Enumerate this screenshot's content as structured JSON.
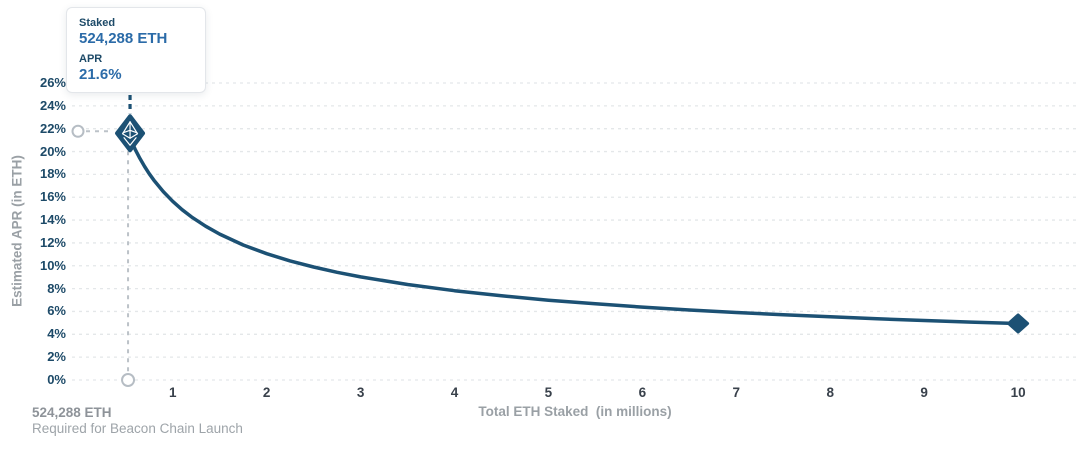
{
  "tooltip": {
    "staked_label": "Staked",
    "staked_value": "524,288 ETH",
    "apr_label": "APR",
    "apr_value": "21.6%"
  },
  "annotation": {
    "line1": "524,288 ETH",
    "line2": "Required for Beacon Chain Launch"
  },
  "chart_data": {
    "type": "line",
    "title": "",
    "xlabel": "Total ETH Staked  (in millions)",
    "ylabel": "Estimated APR (in ETH)",
    "xlim": [
      0,
      10.65
    ],
    "ylim": [
      0,
      26
    ],
    "xticks": [
      1,
      2,
      3,
      4,
      5,
      6,
      7,
      8,
      9,
      10
    ],
    "yticks": [
      0,
      2,
      4,
      6,
      8,
      10,
      12,
      14,
      16,
      18,
      20,
      22,
      24,
      26
    ],
    "ytick_suffix": "%",
    "grid": "horizontal-dashed",
    "legend": "none",
    "series": [
      {
        "name": "Estimated APR",
        "x": [
          0.524288,
          0.55,
          0.6,
          0.65,
          0.7,
          0.75,
          0.8,
          0.9,
          1,
          1.1,
          1.2,
          1.35,
          1.5,
          1.75,
          2,
          2.25,
          2.5,
          2.75,
          3,
          3.5,
          4,
          4.5,
          5,
          5.5,
          6,
          6.5,
          7,
          7.5,
          8,
          8.5,
          9,
          9.5,
          10
        ],
        "y": [
          21.6,
          21.09,
          20.19,
          19.4,
          18.69,
          18.06,
          17.49,
          16.49,
          15.64,
          14.91,
          14.28,
          13.46,
          12.77,
          11.82,
          11.06,
          10.43,
          9.89,
          9.43,
          9.03,
          8.36,
          7.82,
          7.37,
          6.99,
          6.67,
          6.38,
          6.13,
          5.91,
          5.71,
          5.53,
          5.36,
          5.21,
          5.07,
          4.95
        ]
      }
    ],
    "highlight_point": {
      "staked_eth": 524288,
      "x_millions": 0.524288,
      "apr_percent": 21.6
    },
    "end_point": {
      "x_millions": 10,
      "apr_percent": 4.95
    }
  },
  "colors": {
    "curve": "#1c5174",
    "marker_fill": "#1c5174",
    "y_tick": "#1d4a68",
    "x_tick": "#39414b",
    "axis_title": "#9aa0a5",
    "value_blue": "#2b6ba8",
    "grid": "#e4e7e9",
    "dashed_gray": "#bcc2c8",
    "circle_stroke": "#b6bdc4",
    "background": "#ffffff"
  }
}
